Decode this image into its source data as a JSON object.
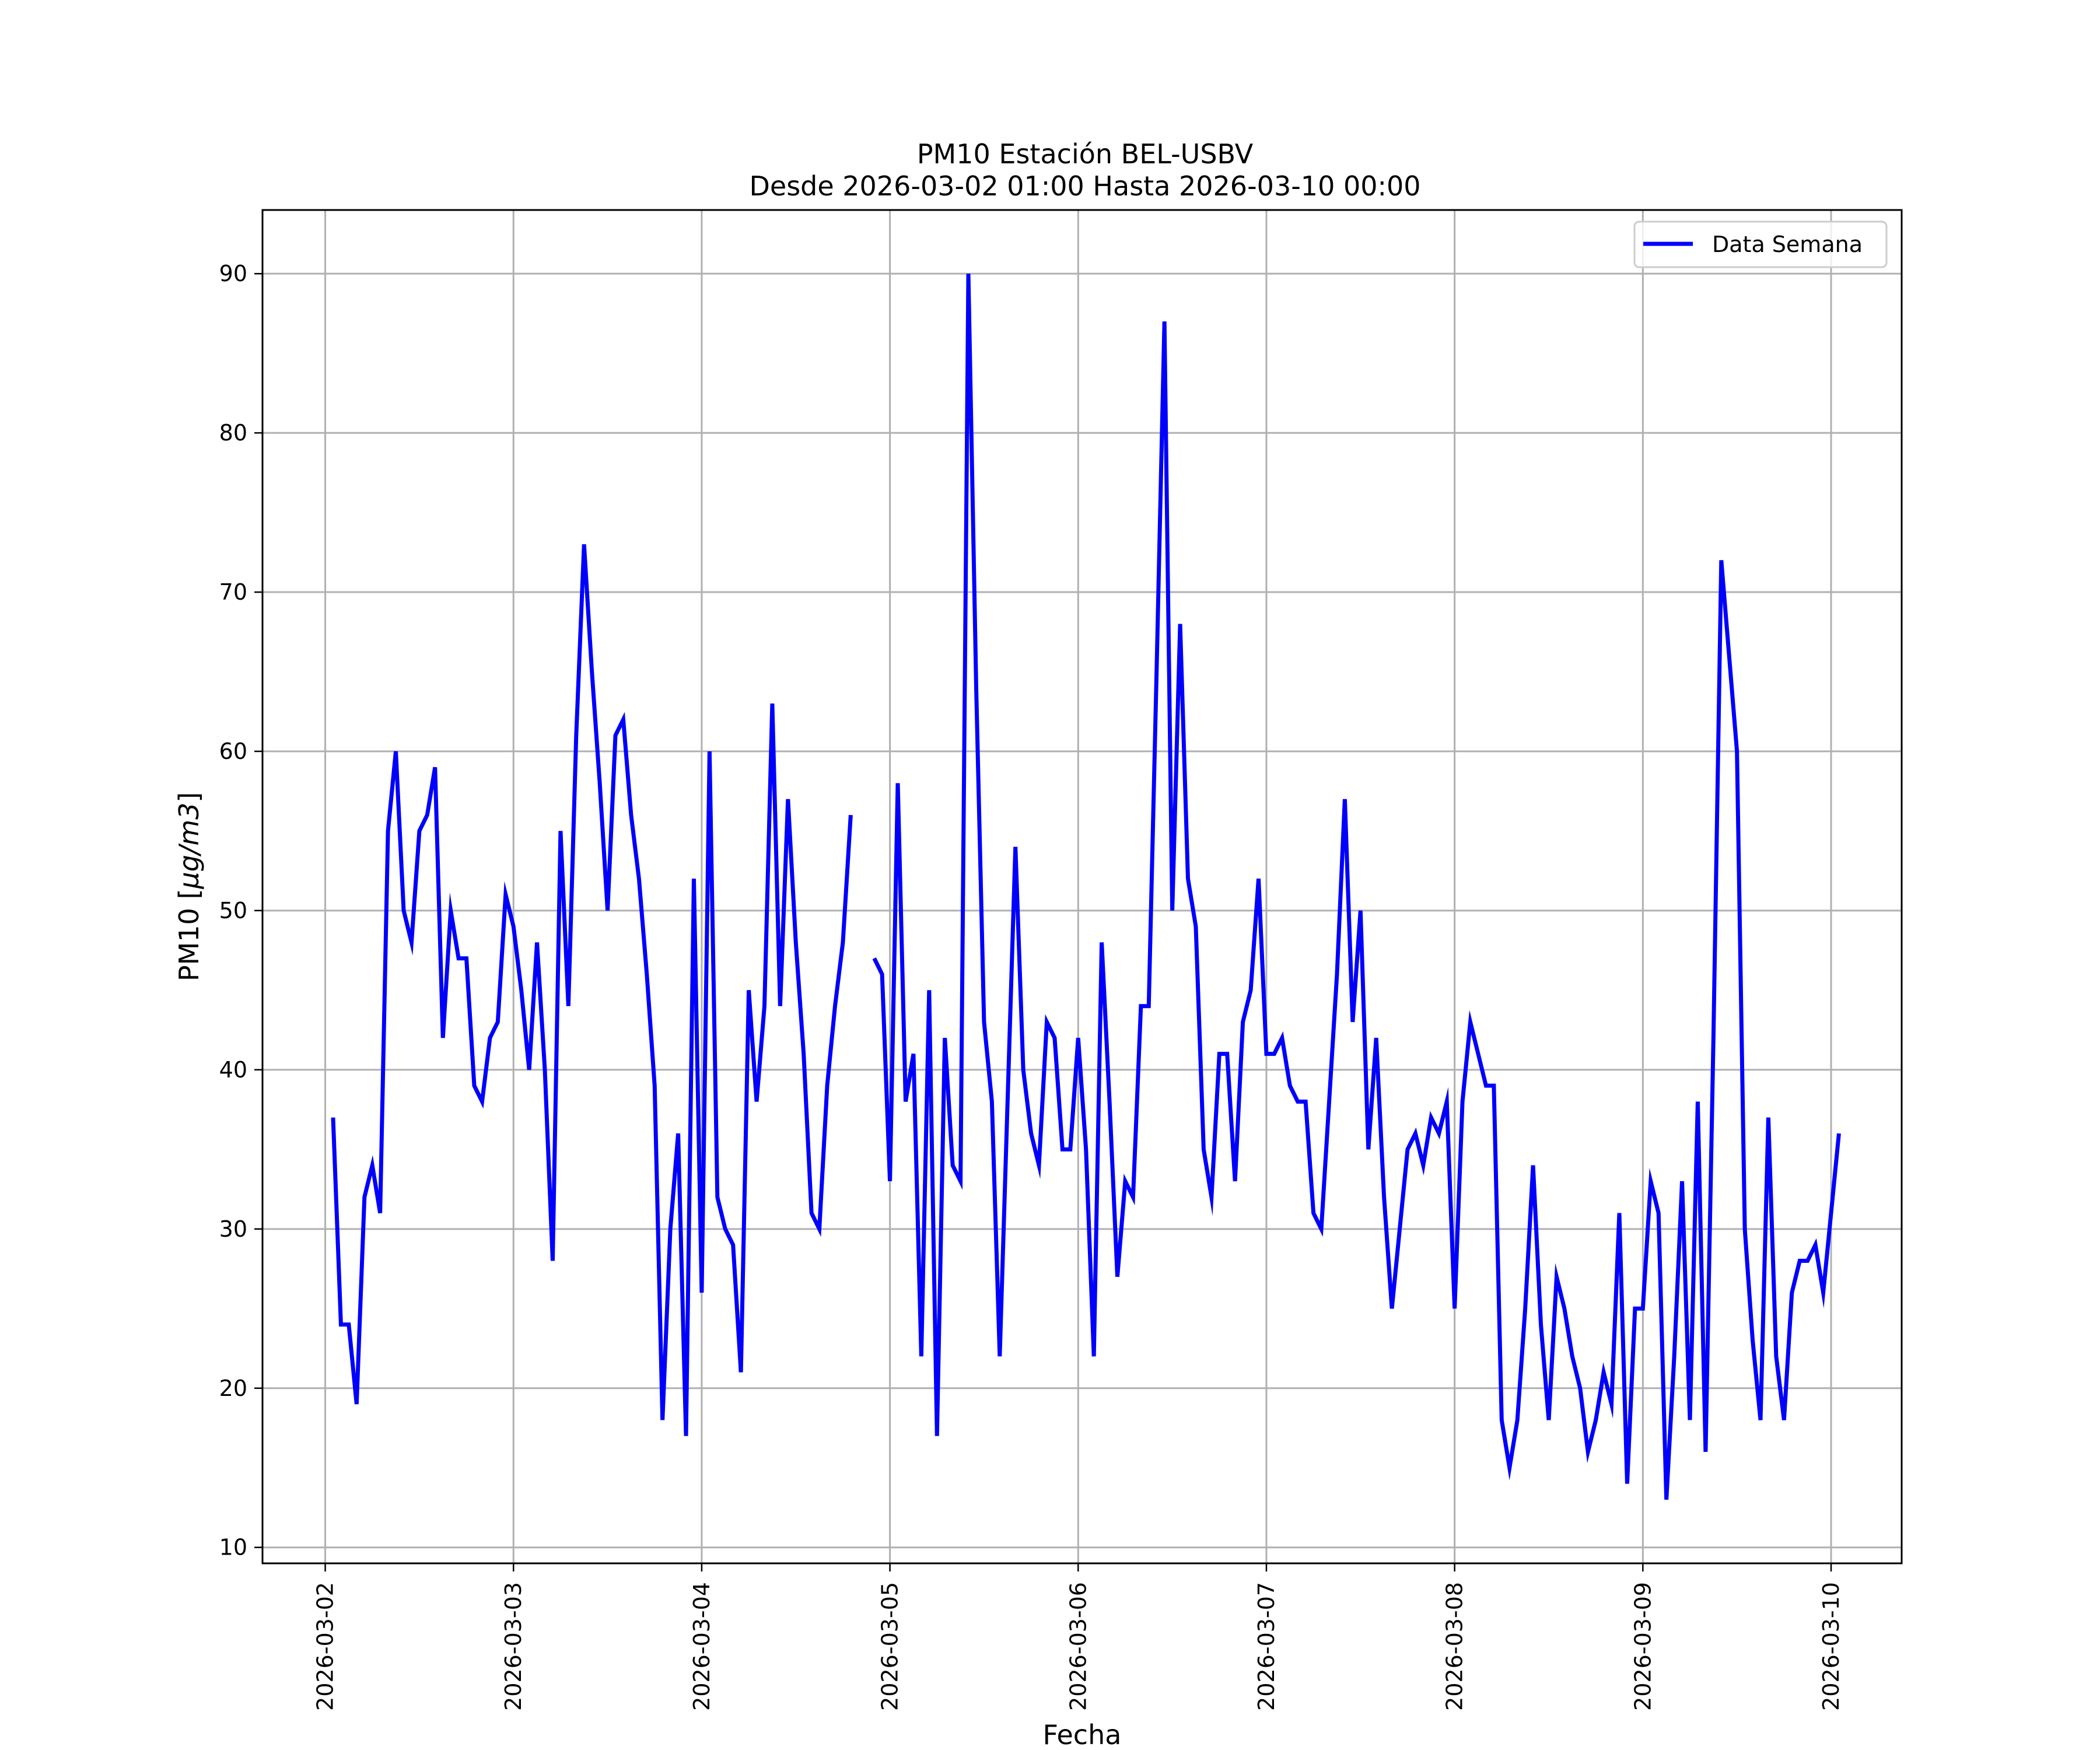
{
  "chart_data": {
    "type": "line",
    "title": "PM10 Estación BEL-USBV",
    "subtitle": "Desde 2026-03-02 01:00 Hasta 2026-03-10 00:00",
    "xlabel": "Fecha",
    "ylabel": "PM10 [μg/m3]",
    "ylabel_prefix": "PM10 [",
    "ylabel_unit": "μg/m3",
    "ylabel_suffix": "]",
    "x_start": "2026-03-02 01:00",
    "x_end": "2026-03-10 00:00",
    "xlim": [
      "2026-03-01 16:00",
      "2026-03-10 09:00"
    ],
    "x_ticks": [
      "2026-03-02",
      "2026-03-03",
      "2026-03-04",
      "2026-03-05",
      "2026-03-06",
      "2026-03-07",
      "2026-03-08",
      "2026-03-09",
      "2026-03-10"
    ],
    "ylim": [
      9,
      94
    ],
    "y_ticks": [
      10,
      20,
      30,
      40,
      50,
      60,
      70,
      80,
      90
    ],
    "y_tick_labels": [
      "10",
      "20",
      "30",
      "40",
      "50",
      "60",
      "70",
      "80",
      "90"
    ],
    "grid": true,
    "legend_position": "top-right",
    "series": [
      {
        "name": "Data Semana",
        "color": "#0000ff",
        "sampling": "hourly",
        "values": [
          37,
          24,
          24,
          19,
          32,
          34,
          31,
          55,
          60,
          50,
          48,
          55,
          56,
          59,
          42,
          50,
          47,
          47,
          39,
          38,
          42,
          43,
          51,
          49,
          45,
          40,
          48,
          40,
          28,
          55,
          44,
          61,
          73,
          65,
          58,
          50,
          61,
          62,
          56,
          52,
          46,
          39,
          18,
          30,
          36,
          17,
          52,
          26,
          60,
          32,
          30,
          29,
          21,
          45,
          38,
          44,
          63,
          44,
          57,
          48,
          41,
          31,
          30,
          39,
          44,
          48,
          56,
          null,
          null,
          47,
          46,
          33,
          58,
          38,
          41,
          22,
          45,
          17,
          42,
          34,
          33,
          90,
          64,
          43,
          38,
          22,
          38,
          54,
          40,
          36,
          34,
          43,
          42,
          35,
          35,
          42,
          35,
          22,
          48,
          38,
          27,
          33,
          32,
          44,
          44,
          65,
          87,
          50,
          68,
          52,
          49,
          35,
          32,
          41,
          41,
          33,
          43,
          45,
          52,
          41,
          41,
          42,
          39,
          38,
          38,
          31,
          30,
          38,
          46,
          57,
          43,
          50,
          35,
          42,
          32,
          25,
          30,
          35,
          36,
          34,
          37,
          36,
          38,
          25,
          38,
          43,
          41,
          39,
          39,
          18,
          15,
          18,
          25,
          34,
          24,
          18,
          27,
          25,
          22,
          20,
          16,
          18,
          21,
          19,
          31,
          14,
          25,
          25,
          33,
          31,
          13,
          22,
          33,
          18,
          38,
          16,
          42,
          72,
          66,
          60,
          30,
          23,
          18,
          37,
          22,
          18,
          26,
          28,
          28,
          29,
          26,
          31,
          36
        ]
      }
    ]
  }
}
